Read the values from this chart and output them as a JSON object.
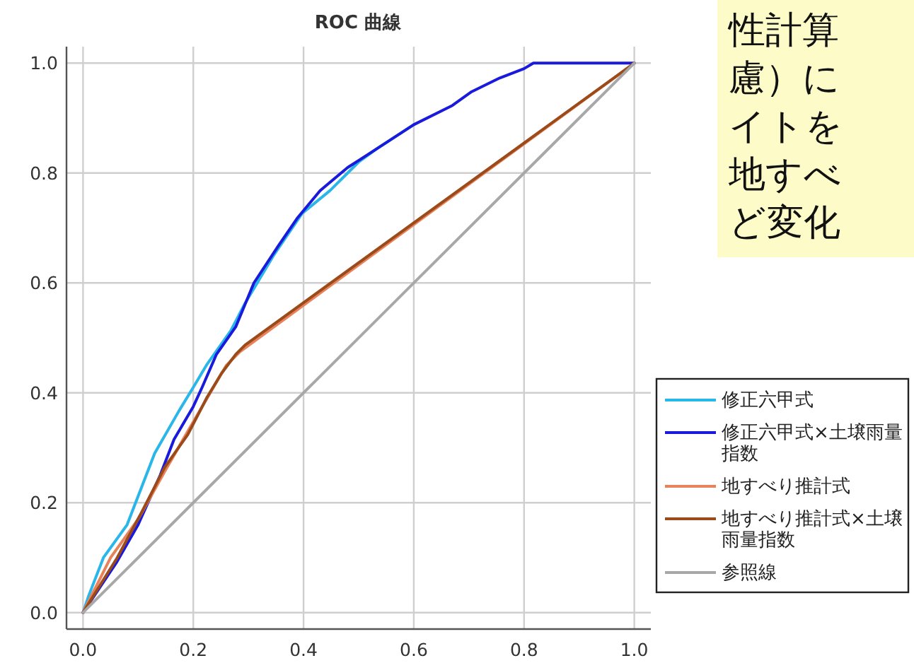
{
  "chart_data": {
    "type": "line",
    "title": "ROC 曲線",
    "series": [
      {
        "name": "修正六甲式",
        "color": "#29b6e8",
        "x": [
          0,
          0.01,
          0.037,
          0.08,
          0.13,
          0.174,
          0.2,
          0.225,
          0.268,
          0.294,
          0.345,
          0.397,
          0.448,
          0.5,
          0.534,
          0.6
        ],
        "values": [
          0,
          0.03,
          0.1,
          0.16,
          0.29,
          0.367,
          0.41,
          0.452,
          0.513,
          0.563,
          0.649,
          0.726,
          0.768,
          0.82,
          0.845,
          0.888
        ]
      },
      {
        "name": "修正六甲式×土壌雨量指数",
        "color": "#1a1adc",
        "x": [
          0,
          0.06,
          0.1,
          0.14,
          0.165,
          0.2,
          0.216,
          0.242,
          0.277,
          0.31,
          0.354,
          0.388,
          0.43,
          0.48,
          0.534,
          0.6,
          0.67,
          0.705,
          0.756,
          0.8,
          0.817,
          1
        ],
        "values": [
          0,
          0.09,
          0.16,
          0.25,
          0.315,
          0.375,
          0.41,
          0.47,
          0.52,
          0.6,
          0.667,
          0.717,
          0.768,
          0.81,
          0.845,
          0.888,
          0.923,
          0.948,
          0.973,
          0.99,
          1,
          1
        ]
      },
      {
        "name": "地すべり推計式",
        "color": "#e8825a",
        "x": [
          0,
          0.05,
          0.1,
          0.15,
          0.19,
          0.225,
          0.26,
          0.285,
          1
        ],
        "values": [
          0,
          0.1,
          0.17,
          0.26,
          0.33,
          0.39,
          0.45,
          0.475,
          1
        ]
      },
      {
        "name": "地すべり推計式×土壌雨量指数",
        "color": "#9b4a1a",
        "x": [
          0,
          0.062,
          0.105,
          0.148,
          0.19,
          0.225,
          0.251,
          0.277,
          0.294,
          1
        ],
        "values": [
          0,
          0.1,
          0.18,
          0.264,
          0.324,
          0.392,
          0.435,
          0.47,
          0.487,
          1
        ]
      },
      {
        "name": "参照線",
        "color": "#a8a8a8",
        "x": [
          0,
          1
        ],
        "values": [
          0,
          1
        ]
      }
    ],
    "xlim": [
      -0.03,
      1.03
    ],
    "ylim": [
      -0.03,
      1.03
    ],
    "xticks": [
      {
        "value": 0,
        "label": "0.0"
      },
      {
        "value": 0.2,
        "label": "0.2"
      },
      {
        "value": 0.4,
        "label": "0.4"
      },
      {
        "value": 0.6,
        "label": "0.6"
      },
      {
        "value": 0.8,
        "label": "0.8"
      },
      {
        "value": 1,
        "label": "1.0"
      }
    ],
    "yticks": [
      {
        "value": 0,
        "label": "0.0"
      },
      {
        "value": 0.2,
        "label": "0.2"
      },
      {
        "value": 0.4,
        "label": "0.4"
      },
      {
        "value": 0.6,
        "label": "0.6"
      },
      {
        "value": 0.8,
        "label": "0.8"
      },
      {
        "value": 1,
        "label": "1.0"
      }
    ],
    "grid": true,
    "legend": "right",
    "annotations": [
      "性計算",
      "慮）に",
      "イトを",
      "地すべ",
      "ど変化"
    ]
  }
}
